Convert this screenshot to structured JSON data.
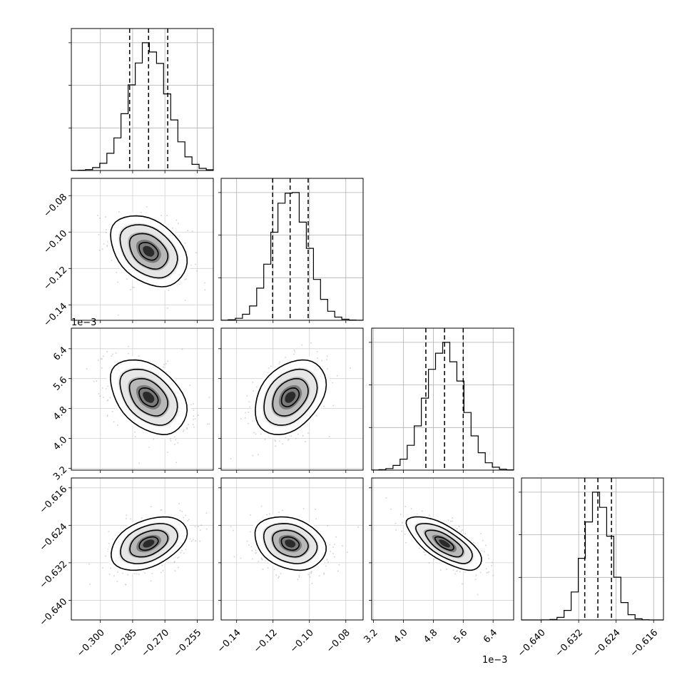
{
  "chart_data": {
    "type": "corner",
    "parameters": [
      {
        "ticks": [
          -0.3,
          -0.285,
          -0.27,
          -0.255
        ],
        "tick_labels": [
          "−0.300",
          "−0.285",
          "−0.270",
          "−0.255"
        ],
        "range": [
          -0.3135,
          -0.2475
        ],
        "quantiles": [
          -0.2864,
          -0.2776,
          -0.2687
        ],
        "scale_label": ""
      },
      {
        "ticks": [
          -0.14,
          -0.12,
          -0.1,
          -0.08
        ],
        "tick_labels": [
          "−0.14",
          "−0.12",
          "−0.10",
          "−0.08"
        ],
        "range": [
          -0.1485,
          -0.0705
        ],
        "quantiles": [
          -0.1202,
          -0.1106,
          -0.1007
        ],
        "scale_label": ""
      },
      {
        "ticks": [
          3.2,
          4.0,
          4.8,
          5.6,
          6.4
        ],
        "tick_labels": [
          "3.2",
          "4.0",
          "4.8",
          "5.6",
          "6.4"
        ],
        "range": [
          3.15,
          6.95
        ],
        "quantiles": [
          4.6,
          5.1,
          5.6
        ],
        "scale_label": "1e−3"
      },
      {
        "ticks": [
          -0.64,
          -0.632,
          -0.624,
          -0.616
        ],
        "tick_labels": [
          "−0.640",
          "−0.632",
          "−0.624",
          "−0.616"
        ],
        "range": [
          -0.6442,
          -0.6139
        ],
        "quantiles": [
          -0.6307,
          -0.6279,
          -0.625
        ],
        "scale_label": ""
      }
    ],
    "grid": true
  }
}
